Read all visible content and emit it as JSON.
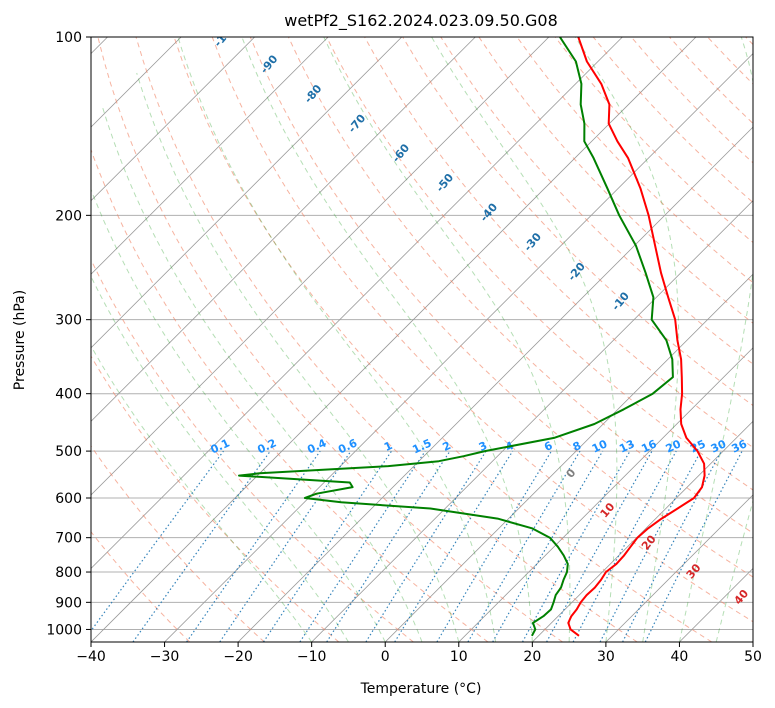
{
  "chart_data": {
    "type": "line",
    "title": "wetPf2_S162.2024.023.09.50.G08",
    "xlabel": "Temperature (°C)",
    "ylabel": "Pressure (hPa)",
    "xlim": [
      -40,
      50
    ],
    "ylim": [
      1050,
      100
    ],
    "y_scale": "log",
    "skew": "skew-T (isotherms slanted 45°)",
    "grid": true,
    "x_ticks": [
      -40,
      -30,
      -20,
      -10,
      0,
      10,
      20,
      30,
      40,
      50
    ],
    "y_ticks": [
      100,
      200,
      300,
      400,
      500,
      600,
      700,
      800,
      900,
      1000
    ],
    "series": [
      {
        "key": "temperature",
        "color": "#ff0000",
        "points": [
          [
            1025,
            25.5
          ],
          [
            1000,
            23.5
          ],
          [
            975,
            22.3
          ],
          [
            950,
            21.8
          ],
          [
            925,
            21.6
          ],
          [
            900,
            21.2
          ],
          [
            875,
            21.0
          ],
          [
            850,
            21.1
          ],
          [
            825,
            20.9
          ],
          [
            800,
            20.5
          ],
          [
            775,
            20.8
          ],
          [
            750,
            20.7
          ],
          [
            725,
            20.4
          ],
          [
            700,
            20.1
          ],
          [
            675,
            20.3
          ],
          [
            650,
            20.8
          ],
          [
            625,
            21.6
          ],
          [
            600,
            22.4
          ],
          [
            575,
            22.0
          ],
          [
            550,
            20.8
          ],
          [
            525,
            19.1
          ],
          [
            500,
            16.5
          ],
          [
            475,
            13.2
          ],
          [
            450,
            10.6
          ],
          [
            425,
            8.5
          ],
          [
            400,
            6.6
          ],
          [
            375,
            4.3
          ],
          [
            350,
            1.8
          ],
          [
            325,
            -1.3
          ],
          [
            300,
            -4.4
          ],
          [
            275,
            -8.4
          ],
          [
            250,
            -12.7
          ],
          [
            225,
            -17.2
          ],
          [
            200,
            -22.2
          ],
          [
            180,
            -27.0
          ],
          [
            160,
            -32.8
          ],
          [
            150,
            -36.5
          ],
          [
            140,
            -40.1
          ],
          [
            130,
            -42.6
          ],
          [
            120,
            -46.5
          ],
          [
            110,
            -51.5
          ],
          [
            100,
            -56.0
          ]
        ]
      },
      {
        "key": "dewpoint",
        "color": "#008000",
        "points": [
          [
            1025,
            19.1
          ],
          [
            1000,
            18.7
          ],
          [
            975,
            17.5
          ],
          [
            950,
            18.0
          ],
          [
            925,
            18.1
          ],
          [
            900,
            17.5
          ],
          [
            875,
            16.8
          ],
          [
            850,
            16.5
          ],
          [
            825,
            15.8
          ],
          [
            800,
            15.2
          ],
          [
            775,
            14.2
          ],
          [
            750,
            12.5
          ],
          [
            725,
            10.5
          ],
          [
            700,
            8.2
          ],
          [
            675,
            4.5
          ],
          [
            650,
            -1.5
          ],
          [
            625,
            -12.0
          ],
          [
            610,
            -25.0
          ],
          [
            600,
            -30.5
          ],
          [
            590,
            -29.5
          ],
          [
            575,
            -25.5
          ],
          [
            565,
            -26.5
          ],
          [
            550,
            -42.5
          ],
          [
            545,
            -40.0
          ],
          [
            530,
            -23.5
          ],
          [
            520,
            -17.3
          ],
          [
            510,
            -14.6
          ],
          [
            500,
            -12.4
          ],
          [
            475,
            -4.8
          ],
          [
            450,
            -1.2
          ],
          [
            425,
            0.8
          ],
          [
            400,
            2.6
          ],
          [
            375,
            3.1
          ],
          [
            350,
            0.6
          ],
          [
            325,
            -2.8
          ],
          [
            300,
            -7.6
          ],
          [
            275,
            -10.4
          ],
          [
            250,
            -14.8
          ],
          [
            225,
            -19.8
          ],
          [
            200,
            -26.2
          ],
          [
            180,
            -31.5
          ],
          [
            160,
            -37.5
          ],
          [
            150,
            -41.0
          ],
          [
            140,
            -43.4
          ],
          [
            130,
            -46.5
          ],
          [
            120,
            -49.2
          ],
          [
            110,
            -53.0
          ],
          [
            100,
            -58.5
          ]
        ]
      }
    ],
    "dry_adiabat_labels": [
      "-100",
      "-90",
      "-80",
      "-70",
      "-60",
      "-50",
      "-40",
      "-30",
      "-20",
      "-10"
    ],
    "moist_adiabat_labels": [
      "0",
      "10",
      "20",
      "30",
      "40"
    ],
    "mixing_ratio_labels": [
      "0.1",
      "0.2",
      "0.4",
      "0.6",
      "1",
      "1.5",
      "2",
      "3",
      "4",
      "6",
      "8",
      "10",
      "13",
      "16",
      "20",
      "25",
      "30",
      "36"
    ],
    "colors": {
      "isotherm": "#999999",
      "dry_adiabat": "#f08060",
      "moist_adiabat": "#2ca02c",
      "mixing_ratio": "#1f77b4",
      "mixing_ratio_label": "#1e90ff",
      "dry_label": "#1f6fa8",
      "moist_label": "#d62728",
      "grid": "#b0b0b0"
    }
  }
}
